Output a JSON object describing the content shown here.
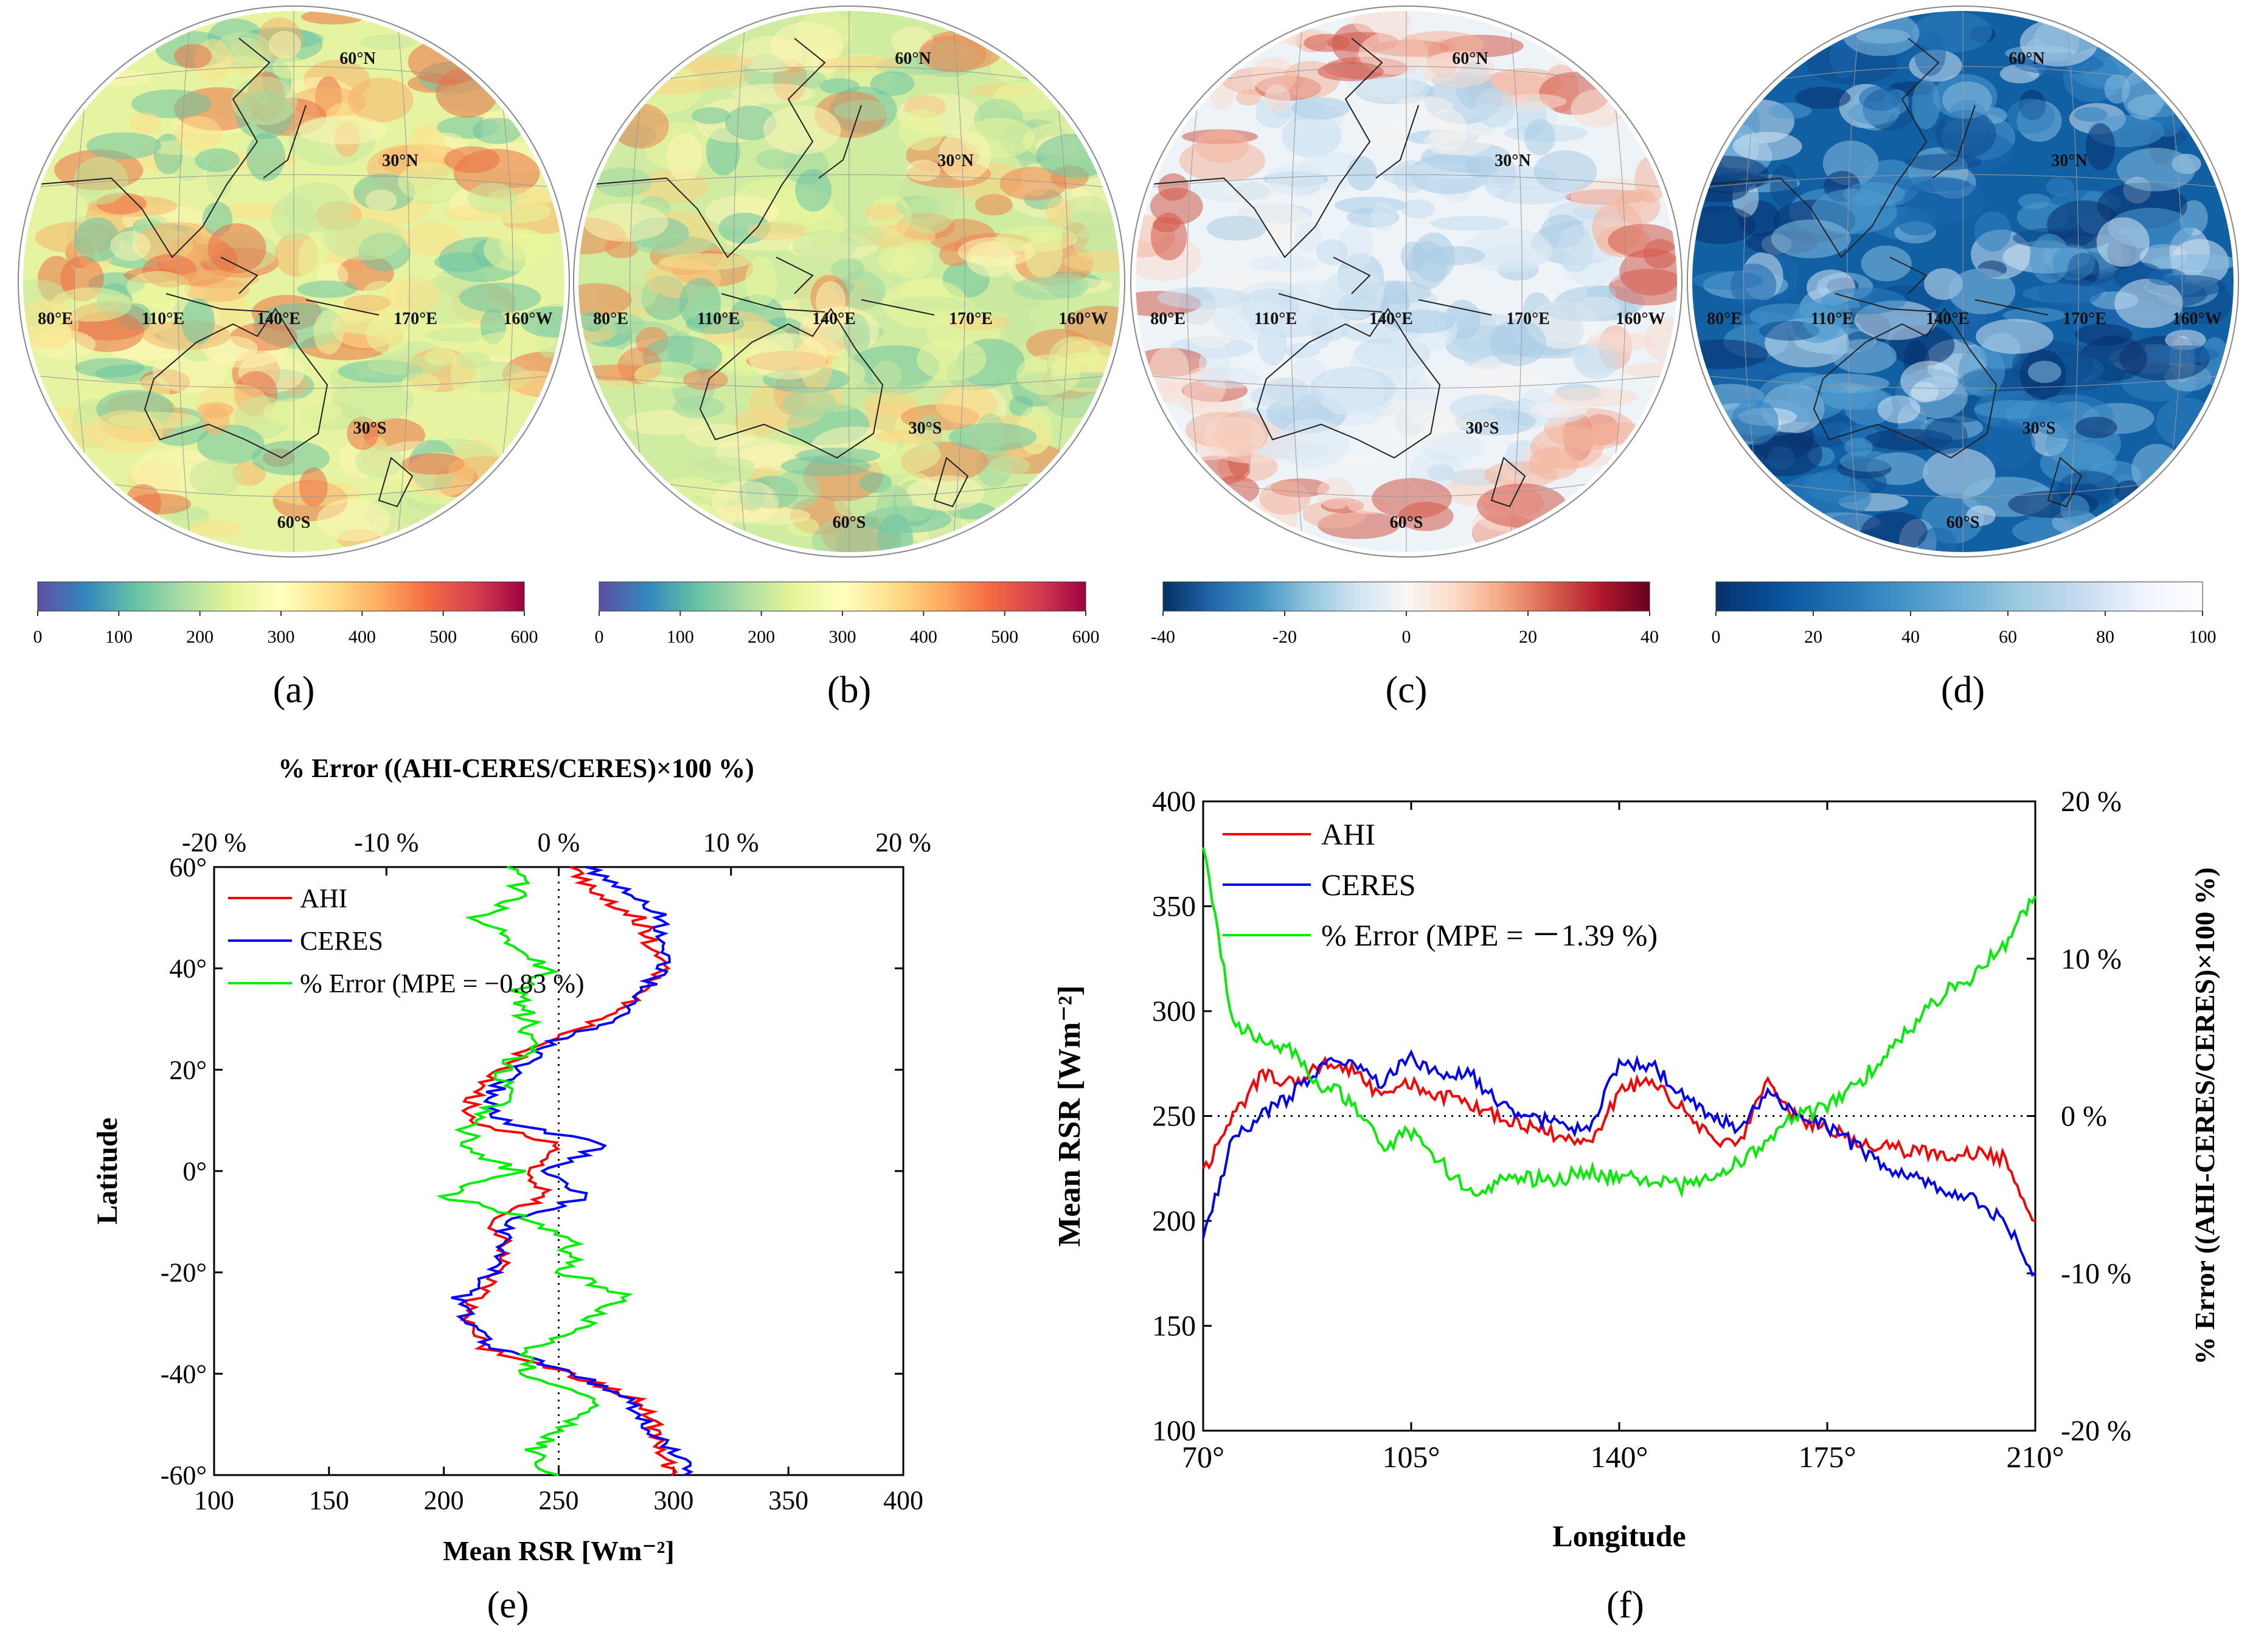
{
  "figure": {
    "panel_labels": [
      "(a)",
      "(b)",
      "(c)",
      "(d)",
      "(e)",
      "(f)"
    ],
    "map_labels": {
      "lat": [
        "60°N",
        "30°N",
        "30°S",
        "60°S"
      ],
      "lon": [
        "80°E",
        "110°E",
        "140°E",
        "170°E",
        "160°W"
      ]
    },
    "colors": {
      "ahi": "#ff0000",
      "ceres": "#0000ff",
      "error": "#00ee00",
      "spectral": [
        "#5e4fa2",
        "#3288bd",
        "#66c2a5",
        "#abdda4",
        "#e6f598",
        "#ffffbf",
        "#fee08b",
        "#fdae61",
        "#f46d43",
        "#d53e4f",
        "#9e0142"
      ],
      "diverging": [
        "#053061",
        "#2166ac",
        "#4393c3",
        "#92c5de",
        "#d1e5f0",
        "#f7f7f7",
        "#fddbc7",
        "#f4a582",
        "#d6604d",
        "#b2182b",
        "#67001f"
      ],
      "blues": [
        "#08306b",
        "#08519c",
        "#2171b5",
        "#4292c6",
        "#6baed6",
        "#9ecae1",
        "#c6dbef",
        "#eff3ff",
        "#ffffff"
      ]
    }
  },
  "chart_data": [
    {
      "id": "a",
      "type": "heatmap",
      "title": "",
      "colorbar": {
        "range": [
          0,
          600
        ],
        "ticks": [
          "0",
          "100",
          "200",
          "300",
          "400",
          "500",
          "600"
        ],
        "colormap": "spectral"
      }
    },
    {
      "id": "b",
      "type": "heatmap",
      "title": "",
      "colorbar": {
        "range": [
          0,
          600
        ],
        "ticks": [
          "0",
          "100",
          "200",
          "300",
          "400",
          "500",
          "600"
        ],
        "colormap": "spectral"
      }
    },
    {
      "id": "c",
      "type": "heatmap",
      "title": "",
      "colorbar": {
        "range": [
          -40,
          40
        ],
        "ticks": [
          "-40",
          "-20",
          "0",
          "20",
          "40"
        ],
        "colormap": "diverging"
      }
    },
    {
      "id": "d",
      "type": "heatmap",
      "title": "",
      "colorbar": {
        "range": [
          0,
          100
        ],
        "ticks": [
          "0",
          "20",
          "40",
          "60",
          "80",
          "100"
        ],
        "colormap": "blues"
      }
    },
    {
      "id": "e",
      "type": "line",
      "title": "",
      "xlabel": "Mean  RSR  [Wm⁻²]",
      "ylabel": "Latitude",
      "top_xlabel": "% Error  ((AHI-CERES/CERES)×100 %)",
      "xlim": [
        100,
        400
      ],
      "ylim": [
        -60,
        60
      ],
      "top_xlim": [
        -20,
        20
      ],
      "x_ticks": [
        "100",
        "150",
        "200",
        "250",
        "300",
        "350",
        "400"
      ],
      "y_ticks": [
        "-60°",
        "-40°",
        "-20°",
        "0°",
        "20°",
        "40°",
        "60°"
      ],
      "top_x_ticks": [
        "-20 %",
        "-10 %",
        "0 %",
        "10 %",
        "20 %"
      ],
      "reference_line": {
        "x": 250,
        "style": "dotted"
      },
      "legend": [
        "AHI",
        "CERES",
        "% Error (MPE = −0.83 %)"
      ],
      "latitude": [
        -60,
        -55,
        -50,
        -45,
        -40,
        -35,
        -30,
        -25,
        -20,
        -15,
        -10,
        -5,
        0,
        5,
        10,
        15,
        20,
        25,
        30,
        35,
        40,
        45,
        50,
        55,
        60
      ],
      "series": [
        {
          "name": "AHI",
          "axis": "bottom",
          "values": [
            300,
            295,
            292,
            283,
            255,
            218,
            210,
            213,
            225,
            227,
            222,
            243,
            240,
            250,
            212,
            213,
            225,
            240,
            270,
            285,
            298,
            290,
            285,
            265,
            255
          ]
        },
        {
          "name": "CERES",
          "axis": "bottom",
          "values": [
            308,
            300,
            288,
            280,
            258,
            222,
            210,
            207,
            223,
            225,
            227,
            262,
            242,
            270,
            225,
            220,
            232,
            245,
            277,
            287,
            295,
            295,
            295,
            280,
            262
          ]
        },
        {
          "name": "% Error",
          "axis": "top",
          "values": [
            -0.5,
            -1.5,
            0.7,
            2.2,
            -2.0,
            -1.5,
            1.5,
            4.0,
            0.5,
            0.8,
            -1.0,
            -6.5,
            -2.5,
            -5.5,
            -5.0,
            -3.0,
            -3.2,
            -1.5,
            -1.8,
            -2.5,
            -0.5,
            -3.0,
            -4.5,
            -2.0,
            -3.0
          ]
        }
      ]
    },
    {
      "id": "f",
      "type": "line",
      "title": "",
      "xlabel": "Longitude",
      "ylabel": "Mean  RSR  [Wm⁻²]",
      "y2label": "% Error  ((AHI-CERES/CERES)×100 %)",
      "xlim": [
        70,
        210
      ],
      "ylim": [
        100,
        400
      ],
      "y2lim": [
        -20,
        20
      ],
      "x_ticks": [
        "70°",
        "105°",
        "140°",
        "175°",
        "210°"
      ],
      "y_ticks": [
        "100",
        "150",
        "200",
        "250",
        "300",
        "350",
        "400"
      ],
      "y2_ticks": [
        "-20 %",
        "-10 %",
        "0 %",
        "10 %",
        "20 %"
      ],
      "reference_line": {
        "y": 250,
        "style": "dotted"
      },
      "legend": [
        "AHI",
        "CERES",
        "% Error (MPE = －1.39 %)"
      ],
      "longitude": [
        70,
        75,
        80,
        85,
        90,
        95,
        100,
        105,
        110,
        115,
        120,
        125,
        130,
        135,
        140,
        145,
        150,
        155,
        160,
        165,
        170,
        175,
        180,
        185,
        190,
        195,
        200,
        205,
        210
      ],
      "series": [
        {
          "name": "AHI",
          "axis": "left",
          "values": [
            222,
            250,
            270,
            265,
            275,
            272,
            260,
            265,
            260,
            255,
            250,
            245,
            240,
            235,
            262,
            268,
            255,
            240,
            237,
            265,
            248,
            245,
            238,
            235,
            233,
            232,
            232,
            230,
            200
          ]
        },
        {
          "name": "CERES",
          "axis": "left",
          "values": [
            190,
            240,
            250,
            260,
            275,
            275,
            265,
            278,
            270,
            270,
            255,
            250,
            245,
            243,
            275,
            275,
            262,
            250,
            245,
            262,
            250,
            245,
            235,
            225,
            220,
            215,
            210,
            200,
            175
          ]
        },
        {
          "name": "% Error",
          "axis": "right",
          "values": [
            17,
            6,
            5,
            4,
            2,
            1,
            -2,
            -1,
            -3,
            -5,
            -4,
            -4,
            -4,
            -3.5,
            -4,
            -4,
            -4.5,
            -4,
            -3,
            -1.5,
            0,
            0.5,
            2,
            4,
            6,
            8,
            9,
            11,
            14
          ]
        }
      ]
    }
  ]
}
